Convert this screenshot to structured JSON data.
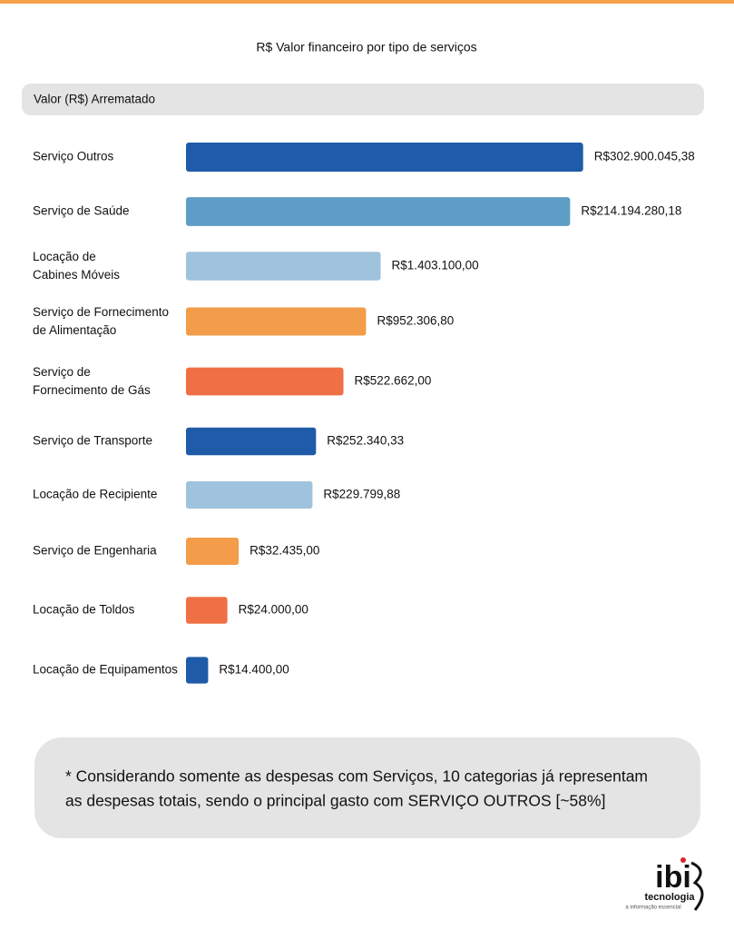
{
  "chart_data": {
    "type": "hbar",
    "title": "R$ Valor financeiro por tipo de serviços",
    "header": "Valor (R$) Arrematado",
    "categories": [
      "Serviço Outros",
      "Serviço de Saúde",
      "Locação de\nCabines Móveis",
      "Serviço de Fornecimento\nde Alimentação",
      "Serviço de\nFornecimento de Gás",
      "Serviço de Transporte",
      "Locação de Recipiente",
      "Serviço de Engenharia",
      "Locação de Toldos",
      "Locação de Equipamentos"
    ],
    "values": [
      302900045.38,
      214194280.18,
      1403100.0,
      952306.8,
      522662.0,
      252340.33,
      229799.88,
      32435.0,
      24000.0,
      14400.0
    ],
    "value_labels": [
      "R$302.900.045,38",
      "R$214.194.280,18",
      "R$1.403.100,00",
      "R$952.306,80",
      "R$522.662,00",
      "R$252.340,33",
      "R$229.799,88",
      "R$32.435,00",
      "R$24.000,00",
      "R$14.400,00"
    ],
    "colors": [
      "#1f5ba8",
      "#5e9dc6",
      "#9fc3dc",
      "#f39c4a",
      "#ef7045",
      "#1f5ba8",
      "#9fc3dc",
      "#f39c4a",
      "#ef7045",
      "#1f5ba8"
    ],
    "log_scale": true,
    "xlim": [
      8000,
      320000000
    ]
  },
  "note": [
    "* Considerando somente as despesas com Serviços, 10 categorias já representam",
    "as despesas totais, sendo o principal gasto com SERVIÇO OUTROS [~58%]"
  ],
  "logo": {
    "name": "ibi",
    "tagline": "tecnologia",
    "slogan": "a informação essencial"
  }
}
